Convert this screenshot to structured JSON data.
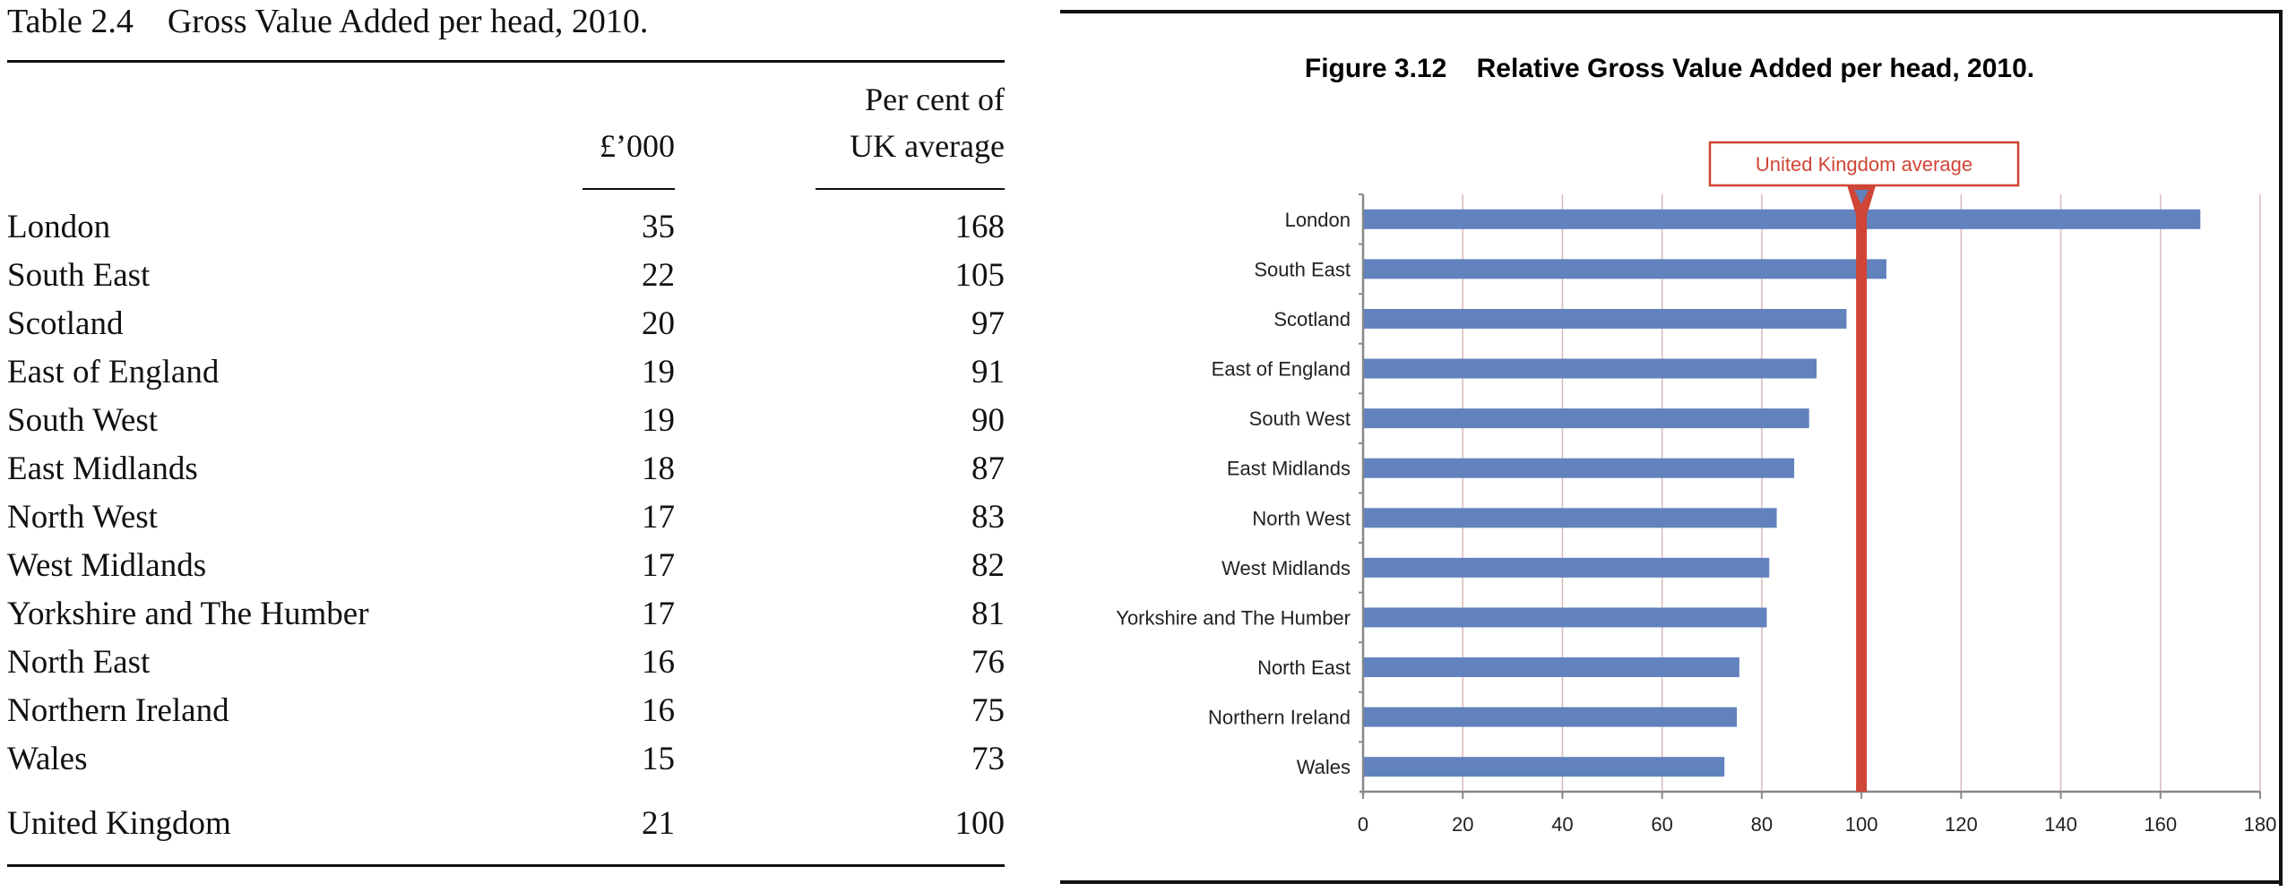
{
  "table": {
    "title": "Table 2.4    Gross Value Added per head, 2010.",
    "col1_header": "£’000",
    "col2_header_line1": "Per cent of",
    "col2_header_line2": "UK average",
    "rows": [
      {
        "region": "London",
        "gva": "35",
        "pct": "168"
      },
      {
        "region": "South East",
        "gva": "22",
        "pct": "105"
      },
      {
        "region": "Scotland",
        "gva": "20",
        "pct": "97"
      },
      {
        "region": "East of England",
        "gva": "19",
        "pct": "91"
      },
      {
        "region": "South West",
        "gva": "19",
        "pct": "90"
      },
      {
        "region": "East Midlands",
        "gva": "18",
        "pct": "87"
      },
      {
        "region": "North West",
        "gva": "17",
        "pct": "83"
      },
      {
        "region": "West Midlands",
        "gva": "17",
        "pct": "82"
      },
      {
        "region": "Yorkshire and The Humber",
        "gva": "17",
        "pct": "81"
      },
      {
        "region": "North East",
        "gva": "16",
        "pct": "76"
      },
      {
        "region": "Northern Ireland",
        "gva": "16",
        "pct": "75"
      },
      {
        "region": "Wales",
        "gva": "15",
        "pct": "73"
      }
    ],
    "total": {
      "region": "United Kingdom",
      "gva": "21",
      "pct": "100"
    }
  },
  "chart_data": {
    "type": "bar",
    "orientation": "horizontal",
    "title": "Figure 3.12    Relative Gross Value Added per head, 2010.",
    "categories": [
      "London",
      "South East",
      "Scotland",
      "East of England",
      "South West",
      "East Midlands",
      "North West",
      "West Midlands",
      "Yorkshire and The Humber",
      "North East",
      "Northern Ireland",
      "Wales"
    ],
    "values": [
      168,
      105,
      97,
      91,
      89.5,
      86.5,
      83,
      81.5,
      81,
      75.5,
      75,
      72.5
    ],
    "xlim": [
      0,
      180
    ],
    "xticks": [
      "0",
      "20",
      "40",
      "60",
      "80",
      "100",
      "120",
      "140",
      "160",
      "180"
    ],
    "grid": true,
    "reference_line": {
      "value": 100,
      "label": "United Kingdom average"
    },
    "colors": {
      "bar": "#6182bd",
      "reference": "#cf4536",
      "grid": "#dcb9b9",
      "axis": "#888888"
    }
  }
}
